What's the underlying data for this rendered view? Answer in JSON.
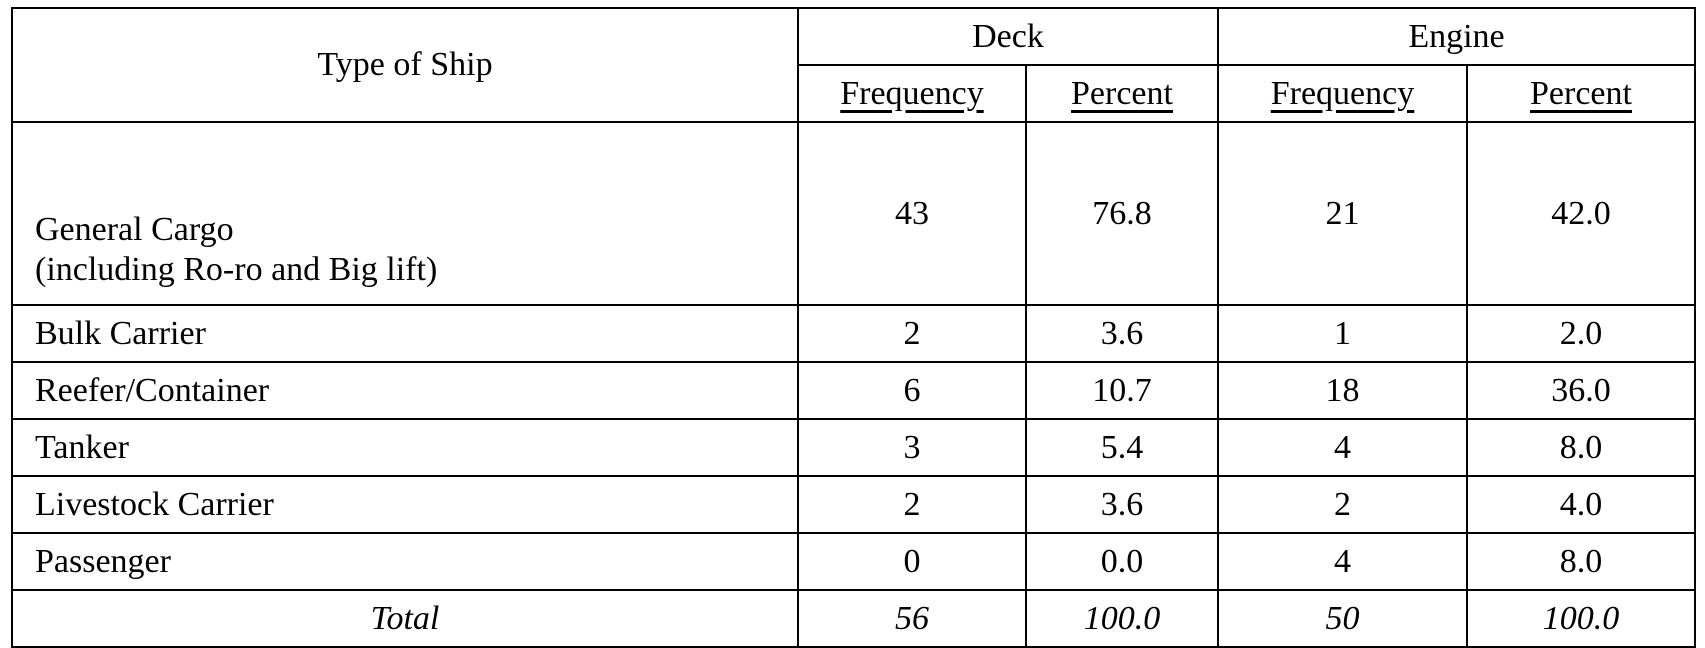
{
  "table": {
    "header": {
      "type_of_ship": "Type of Ship",
      "groups": [
        "Deck",
        "Engine"
      ],
      "subcolumns": [
        "Frequency",
        "Percent",
        "Frequency",
        "Percent"
      ]
    },
    "rows": [
      {
        "label_line1": "General Cargo",
        "label_line2": "(including Ro-ro and Big lift)",
        "values": [
          "43",
          "76.8",
          "21",
          "42.0"
        ]
      },
      {
        "label_line1": "Bulk Carrier",
        "values": [
          "2",
          "3.6",
          "1",
          "2.0"
        ]
      },
      {
        "label_line1": "Reefer/Container",
        "values": [
          "6",
          "10.7",
          "18",
          "36.0"
        ]
      },
      {
        "label_line1": "Tanker",
        "values": [
          "3",
          "5.4",
          "4",
          "8.0"
        ]
      },
      {
        "label_line1": "Livestock Carrier",
        "values": [
          "2",
          "3.6",
          "2",
          "4.0"
        ]
      },
      {
        "label_line1": "Passenger",
        "values": [
          "0",
          "0.0",
          "4",
          "8.0"
        ]
      }
    ],
    "total": {
      "label": "Total",
      "values": [
        "56",
        "100.0",
        "50",
        "100.0"
      ]
    }
  }
}
